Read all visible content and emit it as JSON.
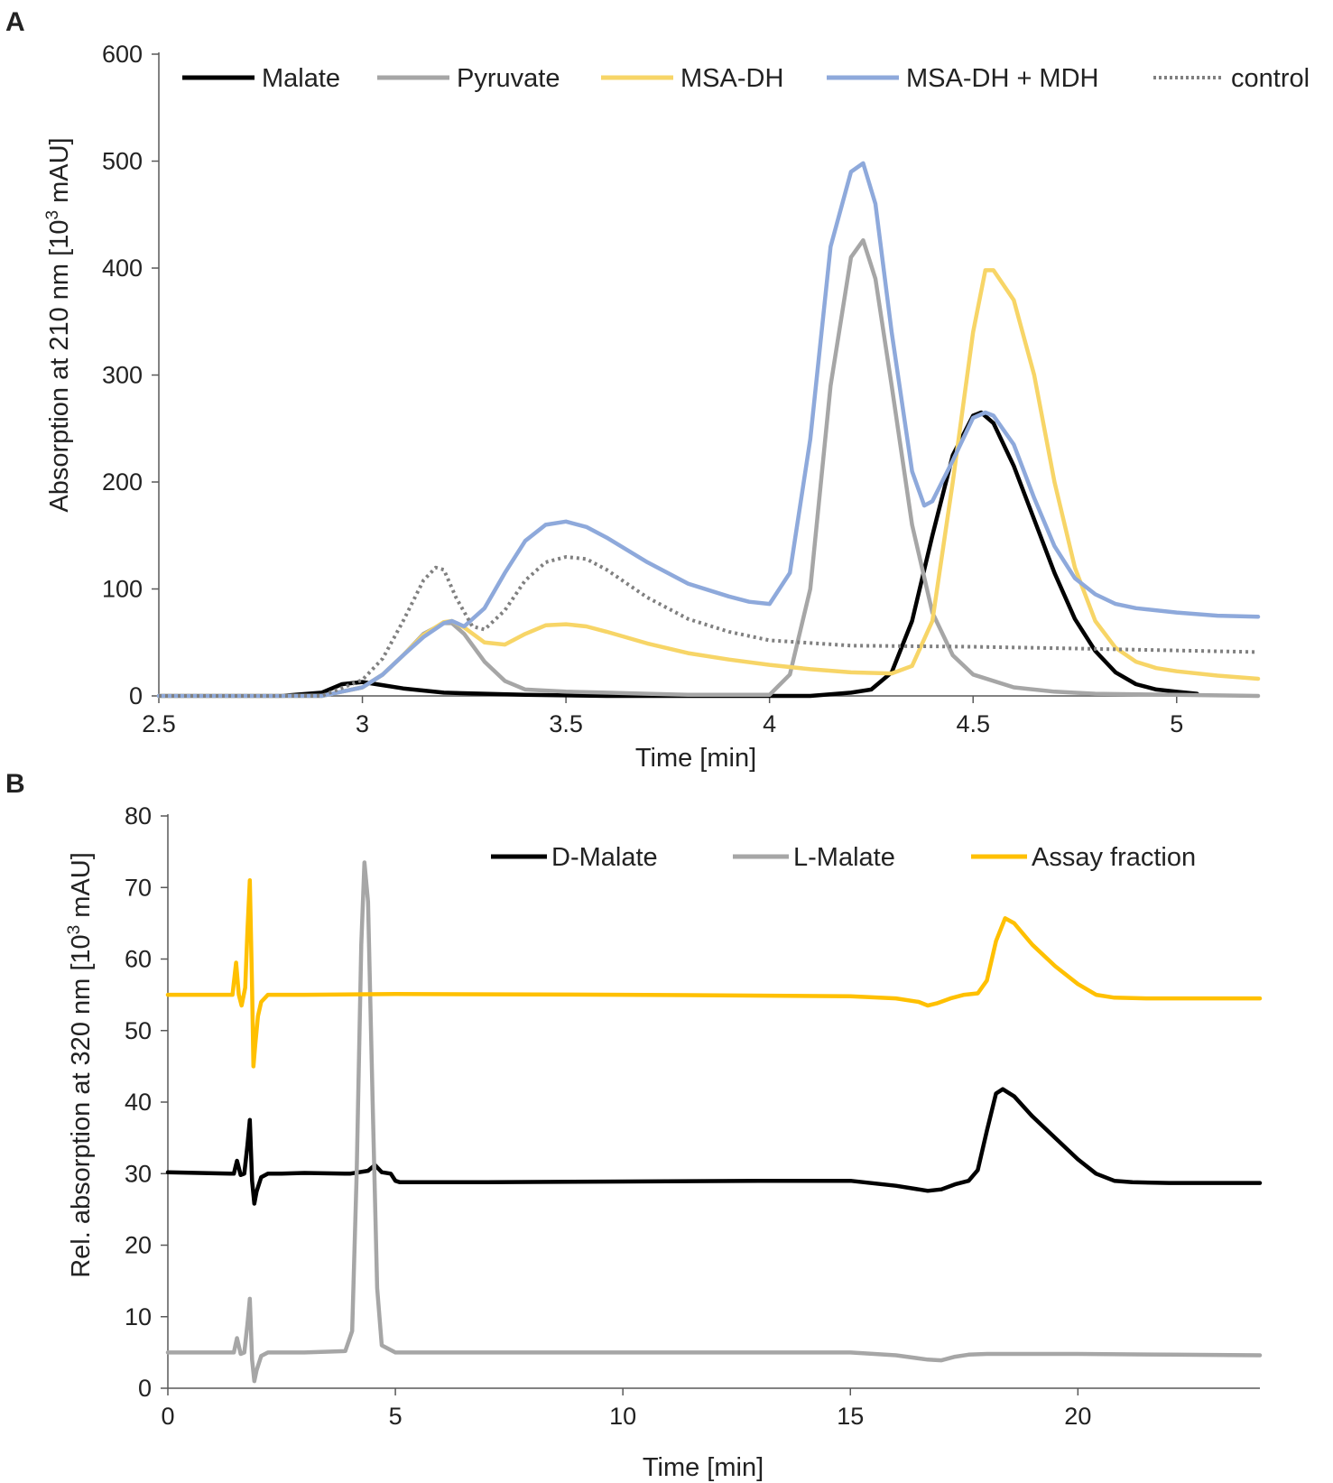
{
  "chart_data": [
    {
      "panel": "A",
      "type": "line",
      "xlabel": "Time [min]",
      "ylabel": "Absorption at 210 nm [10",
      "ylabel_sup": "3",
      "ylabel_end": " mAU]",
      "xlim": [
        2.5,
        5.2
      ],
      "ylim": [
        0,
        600
      ],
      "xticks": [
        2.5,
        3,
        3.5,
        4,
        4.5,
        5
      ],
      "yticks": [
        0,
        100,
        200,
        300,
        400,
        500,
        600
      ],
      "grid": false,
      "legend_position": "top",
      "series": [
        {
          "name": "Malate",
          "color": "#000000",
          "dash": false,
          "x": [
            2.5,
            2.8,
            2.9,
            2.95,
            3.0,
            3.05,
            3.1,
            3.2,
            3.4,
            3.6,
            3.8,
            4.0,
            4.1,
            4.2,
            4.25,
            4.3,
            4.35,
            4.4,
            4.45,
            4.5,
            4.52,
            4.55,
            4.6,
            4.65,
            4.7,
            4.75,
            4.8,
            4.85,
            4.9,
            4.95,
            5.0,
            5.05
          ],
          "y": [
            0,
            0,
            3,
            11,
            13,
            10,
            7,
            3,
            1,
            0,
            0,
            0,
            0,
            3,
            6,
            22,
            70,
            150,
            225,
            262,
            265,
            255,
            215,
            165,
            115,
            72,
            42,
            22,
            11,
            6,
            4,
            2
          ]
        },
        {
          "name": "Pyruvate",
          "color": "#a6a6a6",
          "dash": false,
          "x": [
            2.5,
            2.9,
            3.0,
            3.05,
            3.1,
            3.15,
            3.2,
            3.22,
            3.25,
            3.3,
            3.35,
            3.4,
            3.5,
            3.6,
            3.7,
            3.8,
            3.9,
            4.0,
            4.05,
            4.1,
            4.15,
            4.2,
            4.23,
            4.26,
            4.3,
            4.35,
            4.4,
            4.45,
            4.5,
            4.6,
            4.7,
            4.8,
            5.0,
            5.2
          ],
          "y": [
            0,
            0,
            8,
            20,
            38,
            58,
            68,
            68,
            58,
            32,
            14,
            6,
            4,
            3,
            2,
            1,
            1,
            1,
            20,
            100,
            290,
            410,
            426,
            390,
            290,
            160,
            78,
            38,
            20,
            8,
            4,
            2,
            1,
            0
          ]
        },
        {
          "name": "MSA-DH",
          "color": "#f7d567",
          "dash": false,
          "x": [
            2.5,
            2.9,
            3.0,
            3.05,
            3.1,
            3.15,
            3.2,
            3.22,
            3.25,
            3.3,
            3.35,
            3.4,
            3.45,
            3.5,
            3.55,
            3.6,
            3.7,
            3.8,
            3.9,
            4.0,
            4.1,
            4.2,
            4.3,
            4.35,
            4.4,
            4.45,
            4.5,
            4.53,
            4.55,
            4.6,
            4.65,
            4.7,
            4.75,
            4.8,
            4.85,
            4.9,
            4.95,
            5.0,
            5.1,
            5.2
          ],
          "y": [
            0,
            0,
            8,
            20,
            38,
            57,
            69,
            70,
            64,
            50,
            48,
            58,
            66,
            67,
            65,
            60,
            49,
            40,
            34,
            29,
            25,
            22,
            21,
            28,
            70,
            200,
            340,
            398,
            398,
            370,
            300,
            200,
            120,
            70,
            45,
            32,
            26,
            23,
            19,
            16
          ]
        },
        {
          "name": "MSA-DH + MDH",
          "color": "#8ea9db",
          "dash": false,
          "x": [
            2.5,
            2.9,
            3.0,
            3.05,
            3.1,
            3.15,
            3.2,
            3.22,
            3.25,
            3.3,
            3.35,
            3.4,
            3.45,
            3.5,
            3.55,
            3.6,
            3.7,
            3.8,
            3.9,
            3.95,
            4.0,
            4.05,
            4.1,
            4.15,
            4.2,
            4.23,
            4.26,
            4.3,
            4.35,
            4.38,
            4.4,
            4.45,
            4.5,
            4.53,
            4.55,
            4.6,
            4.65,
            4.7,
            4.75,
            4.8,
            4.85,
            4.9,
            5.0,
            5.1,
            5.2
          ],
          "y": [
            0,
            0,
            8,
            20,
            38,
            55,
            68,
            70,
            65,
            82,
            115,
            145,
            160,
            163,
            158,
            148,
            125,
            105,
            93,
            88,
            86,
            115,
            240,
            420,
            490,
            498,
            460,
            340,
            210,
            178,
            182,
            220,
            260,
            265,
            262,
            235,
            185,
            140,
            110,
            95,
            86,
            82,
            78,
            75,
            74
          ]
        },
        {
          "name": "control",
          "color": "#808080",
          "dash": true,
          "x": [
            2.5,
            2.9,
            3.0,
            3.05,
            3.1,
            3.15,
            3.18,
            3.2,
            3.23,
            3.27,
            3.3,
            3.35,
            3.4,
            3.45,
            3.5,
            3.55,
            3.6,
            3.7,
            3.8,
            3.9,
            4.0,
            4.2,
            4.5,
            4.8,
            5.2
          ],
          "y": [
            0,
            0,
            15,
            35,
            70,
            108,
            120,
            118,
            92,
            65,
            62,
            80,
            108,
            125,
            130,
            128,
            118,
            92,
            72,
            60,
            52,
            47,
            46,
            44,
            41
          ]
        }
      ]
    },
    {
      "panel": "B",
      "type": "line",
      "xlabel": "Time [min]",
      "ylabel": "Rel. absorption at  320 nm [10",
      "ylabel_sup": "3",
      "ylabel_end": " mAU]",
      "xlim": [
        0,
        24
      ],
      "ylim": [
        0,
        80
      ],
      "xticks": [
        0,
        5,
        10,
        15,
        20
      ],
      "yticks": [
        0,
        10,
        20,
        30,
        40,
        50,
        60,
        70,
        80
      ],
      "grid": false,
      "legend_position": "top-right",
      "series": [
        {
          "name": "D-Malate",
          "color": "#000000",
          "dash": false,
          "x": [
            0,
            1.45,
            1.52,
            1.6,
            1.68,
            1.75,
            1.8,
            1.85,
            1.9,
            1.95,
            2.05,
            2.2,
            2.5,
            3.0,
            4.0,
            4.4,
            4.55,
            4.7,
            4.9,
            5.0,
            5.1,
            7,
            10,
            13,
            15,
            16,
            16.7,
            17.0,
            17.3,
            17.6,
            17.8,
            18.0,
            18.2,
            18.35,
            18.6,
            19.0,
            19.5,
            20.0,
            20.4,
            20.8,
            21.2,
            22,
            24
          ],
          "y": [
            30.2,
            30.0,
            31.8,
            29.8,
            30.0,
            34.0,
            37.5,
            29.0,
            25.8,
            27.5,
            29.5,
            30.0,
            30.0,
            30.1,
            30.0,
            30.4,
            31.2,
            30.2,
            30.0,
            29.0,
            28.8,
            28.8,
            28.9,
            29.0,
            29.0,
            28.3,
            27.6,
            27.8,
            28.5,
            29.0,
            30.5,
            36.0,
            41.2,
            41.8,
            40.8,
            38.0,
            35.0,
            32.0,
            30.0,
            29.0,
            28.8,
            28.7,
            28.7
          ]
        },
        {
          "name": "L-Malate",
          "color": "#a6a6a6",
          "dash": false,
          "x": [
            0,
            1.45,
            1.52,
            1.6,
            1.68,
            1.75,
            1.8,
            1.85,
            1.9,
            1.95,
            2.05,
            2.2,
            3.0,
            3.9,
            4.05,
            4.15,
            4.25,
            4.32,
            4.4,
            4.5,
            4.6,
            4.7,
            5.0,
            7,
            10,
            13,
            15,
            16,
            16.7,
            17.0,
            17.3,
            17.6,
            18,
            20,
            22,
            24
          ],
          "y": [
            5.0,
            5.0,
            7.0,
            4.8,
            5.0,
            9.0,
            12.5,
            4.0,
            1.0,
            2.5,
            4.5,
            5.0,
            5.0,
            5.2,
            8.0,
            30.0,
            62.0,
            73.5,
            68.0,
            40.0,
            14.0,
            6.0,
            5.0,
            5.0,
            5.0,
            5.0,
            5.0,
            4.6,
            4.0,
            3.9,
            4.4,
            4.7,
            4.8,
            4.8,
            4.7,
            4.6
          ]
        },
        {
          "name": "Assay fraction",
          "color": "#ffc000",
          "dash": false,
          "x": [
            0,
            1.42,
            1.5,
            1.56,
            1.62,
            1.7,
            1.75,
            1.8,
            1.85,
            1.88,
            1.92,
            1.98,
            2.05,
            2.2,
            2.5,
            3.0,
            5,
            10,
            15,
            16,
            16.5,
            16.7,
            16.9,
            17.2,
            17.5,
            17.8,
            18.0,
            18.2,
            18.4,
            18.6,
            19.0,
            19.5,
            20.0,
            20.4,
            20.8,
            21.5,
            24
          ],
          "y": [
            55.0,
            55.0,
            59.5,
            55.0,
            53.5,
            56.0,
            64.0,
            71.0,
            56.0,
            45.0,
            48.0,
            52.0,
            54.0,
            55.0,
            55.0,
            55.0,
            55.1,
            55.0,
            54.8,
            54.5,
            54.0,
            53.5,
            53.8,
            54.5,
            55.0,
            55.2,
            57.0,
            62.5,
            65.7,
            65.0,
            62.0,
            59.0,
            56.5,
            55.0,
            54.6,
            54.5,
            54.5
          ]
        }
      ]
    }
  ]
}
